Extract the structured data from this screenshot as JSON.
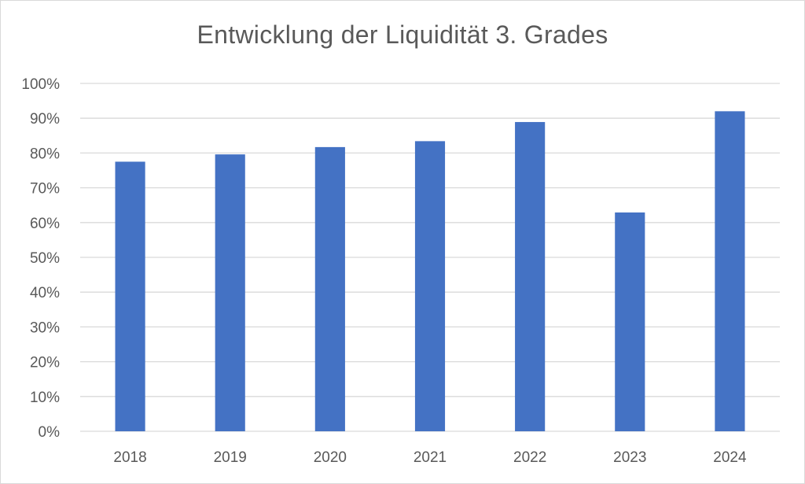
{
  "chart_data": {
    "type": "bar",
    "title": "Entwicklung der Liquidität 3. Grades",
    "categories": [
      "2018",
      "2019",
      "2020",
      "2021",
      "2022",
      "2023",
      "2024"
    ],
    "series": [
      {
        "values": [
          77.5,
          79.6,
          81.7,
          83.4,
          88.9,
          62.9,
          92.0
        ],
        "color": "#4472c4"
      }
    ],
    "ylim": [
      0,
      100
    ],
    "y_ticks": [
      "0%",
      "10%",
      "20%",
      "30%",
      "40%",
      "50%",
      "60%",
      "70%",
      "80%",
      "90%",
      "100%"
    ],
    "grid": true,
    "legend": "none"
  }
}
